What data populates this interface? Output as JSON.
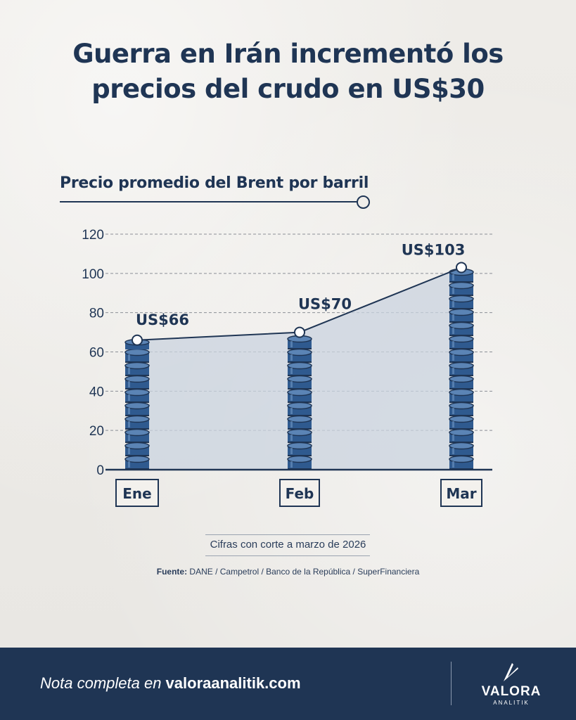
{
  "header": {
    "title_line1": "Guerra en Irán incrementó los",
    "title_line2": "precios del crudo en US$30"
  },
  "subtitle": "Precio promedio del Brent por barril",
  "chart_data": {
    "type": "line",
    "categories": [
      "Ene",
      "Feb",
      "Mar"
    ],
    "series": [
      {
        "values": [
          66,
          70,
          103
        ]
      }
    ],
    "data_labels": [
      "US$66",
      "US$70",
      "US$103"
    ],
    "yticks": [
      "0",
      "20",
      "40",
      "60",
      "80",
      "100",
      "120"
    ],
    "ylim": [
      0,
      120
    ],
    "grid": true,
    "colors": {
      "line": "#1f3554",
      "area": "#c9d3df",
      "barrel": "#2f5a8f",
      "barrel_dark": "#1f3554",
      "grid": "#8b8f96"
    }
  },
  "note": "Cifras con corte a marzo de 2026",
  "source": {
    "label": "Fuente:",
    "text": " DANE / Campetrol / Banco de la República / SuperFinanciera"
  },
  "footer": {
    "prefix": "Nota completa en ",
    "site": "valoraanalitik.com",
    "logo_name": "VALORA",
    "logo_sub": "ANALITIK",
    "background": "#1f3554"
  }
}
